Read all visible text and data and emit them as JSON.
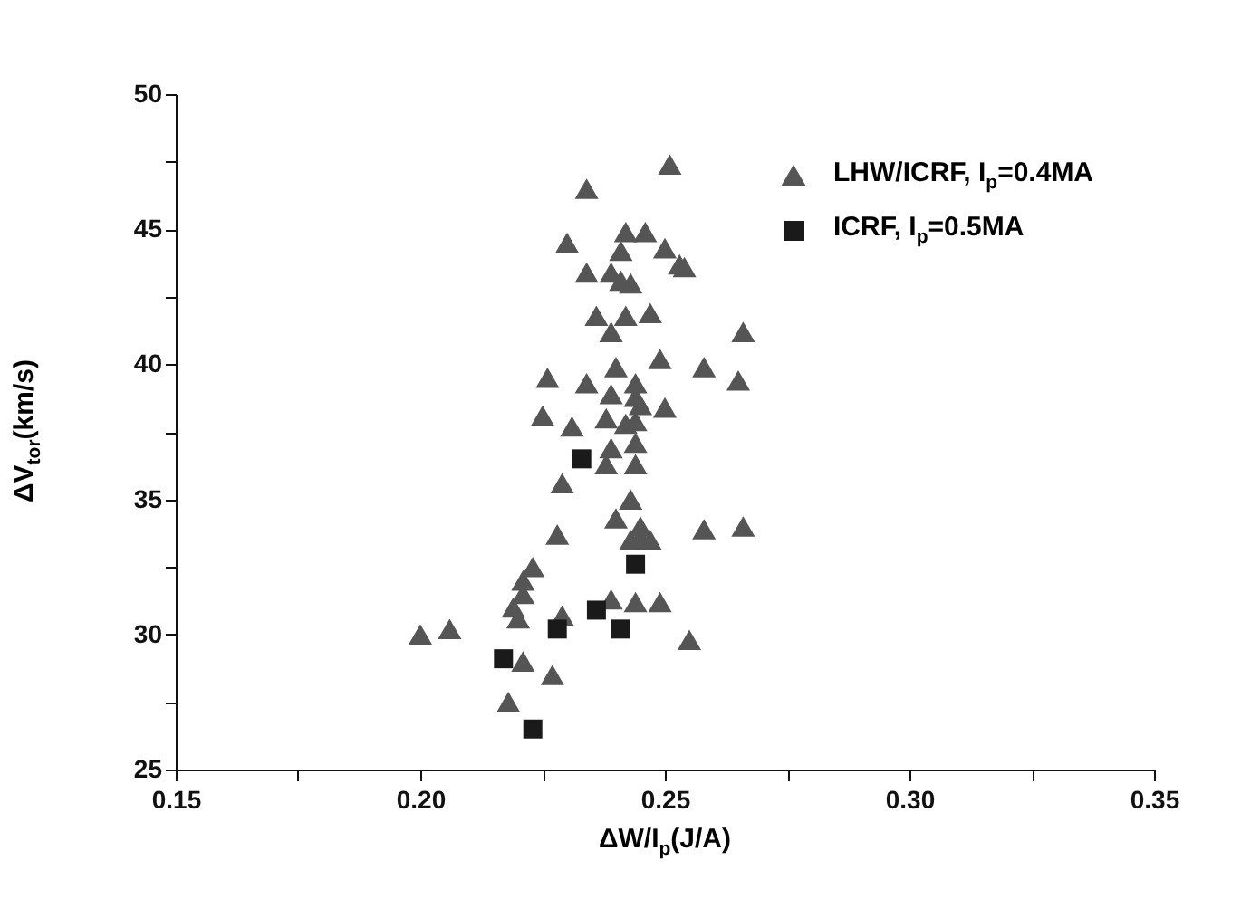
{
  "chart_data": {
    "type": "scatter",
    "xlabel": "ΔW/I$_{p}$(J/A)",
    "ylabel": "ΔV$_{tor}$(km/s)",
    "xlim": [
      0.15,
      0.35
    ],
    "ylim": [
      25,
      50
    ],
    "xticks": [
      0.15,
      {
        "value": 0.175,
        "label": null
      },
      {
        "value": 0.2,
        "label": "0.20"
      },
      {
        "value": 0.225,
        "label": null
      },
      0.25,
      {
        "value": 0.275,
        "label": null
      },
      {
        "value": 0.3,
        "label": "0.30"
      },
      {
        "value": 0.325,
        "label": null
      },
      0.35
    ],
    "yticks": [
      25,
      {
        "value": 27.5,
        "label": null
      },
      30,
      {
        "value": 32.5,
        "label": null
      },
      35,
      {
        "value": 37.5,
        "label": null
      },
      40,
      {
        "value": 42.5,
        "label": null
      },
      45,
      {
        "value": 47.5,
        "label": null
      },
      50
    ],
    "grid": false,
    "legend": "top right",
    "series": [
      {
        "name": "LHW/ICRF, I$_{p}$=0.4MA",
        "color": "#555555",
        "marker": "triangle",
        "x": [
          0.251,
          0.234,
          0.23,
          0.242,
          0.246,
          0.241,
          0.25,
          0.253,
          0.254,
          0.234,
          0.239,
          0.241,
          0.243,
          0.236,
          0.242,
          0.247,
          0.239,
          0.266,
          0.226,
          0.234,
          0.24,
          0.249,
          0.258,
          0.265,
          0.239,
          0.244,
          0.244,
          0.245,
          0.25,
          0.225,
          0.231,
          0.238,
          0.242,
          0.244,
          0.244,
          0.239,
          0.238,
          0.244,
          0.229,
          0.243,
          0.24,
          0.245,
          0.245,
          0.243,
          0.247,
          0.258,
          0.266,
          0.228,
          0.223,
          0.221,
          0.221,
          0.219,
          0.22,
          0.229,
          0.239,
          0.244,
          0.249,
          0.255,
          0.2,
          0.206,
          0.221,
          0.227,
          0.218
        ],
        "values": [
          47.4,
          46.5,
          44.5,
          44.9,
          44.9,
          44.2,
          44.3,
          43.7,
          43.6,
          43.4,
          43.4,
          43.1,
          43.0,
          41.8,
          41.8,
          41.9,
          41.2,
          41.2,
          39.5,
          39.3,
          39.9,
          40.2,
          39.9,
          39.4,
          38.9,
          39.3,
          38.8,
          38.5,
          38.4,
          38.1,
          37.7,
          38.0,
          37.8,
          37.9,
          37.1,
          36.9,
          36.3,
          36.3,
          35.6,
          35.0,
          34.3,
          34.0,
          33.6,
          33.5,
          33.5,
          33.9,
          34.0,
          33.7,
          32.5,
          32.0,
          31.5,
          31.0,
          30.6,
          30.7,
          31.3,
          31.2,
          31.2,
          29.8,
          30.0,
          30.2,
          29.0,
          28.5,
          27.5
        ]
      },
      {
        "name": "ICRF, I$_{p}$=0.5MA",
        "color": "#1a1a1a",
        "marker": "square",
        "x": [
          0.233,
          0.244,
          0.236,
          0.228,
          0.241,
          0.217,
          0.223
        ],
        "values": [
          36.5,
          32.6,
          30.9,
          30.2,
          30.2,
          29.1,
          26.5
        ]
      }
    ]
  }
}
